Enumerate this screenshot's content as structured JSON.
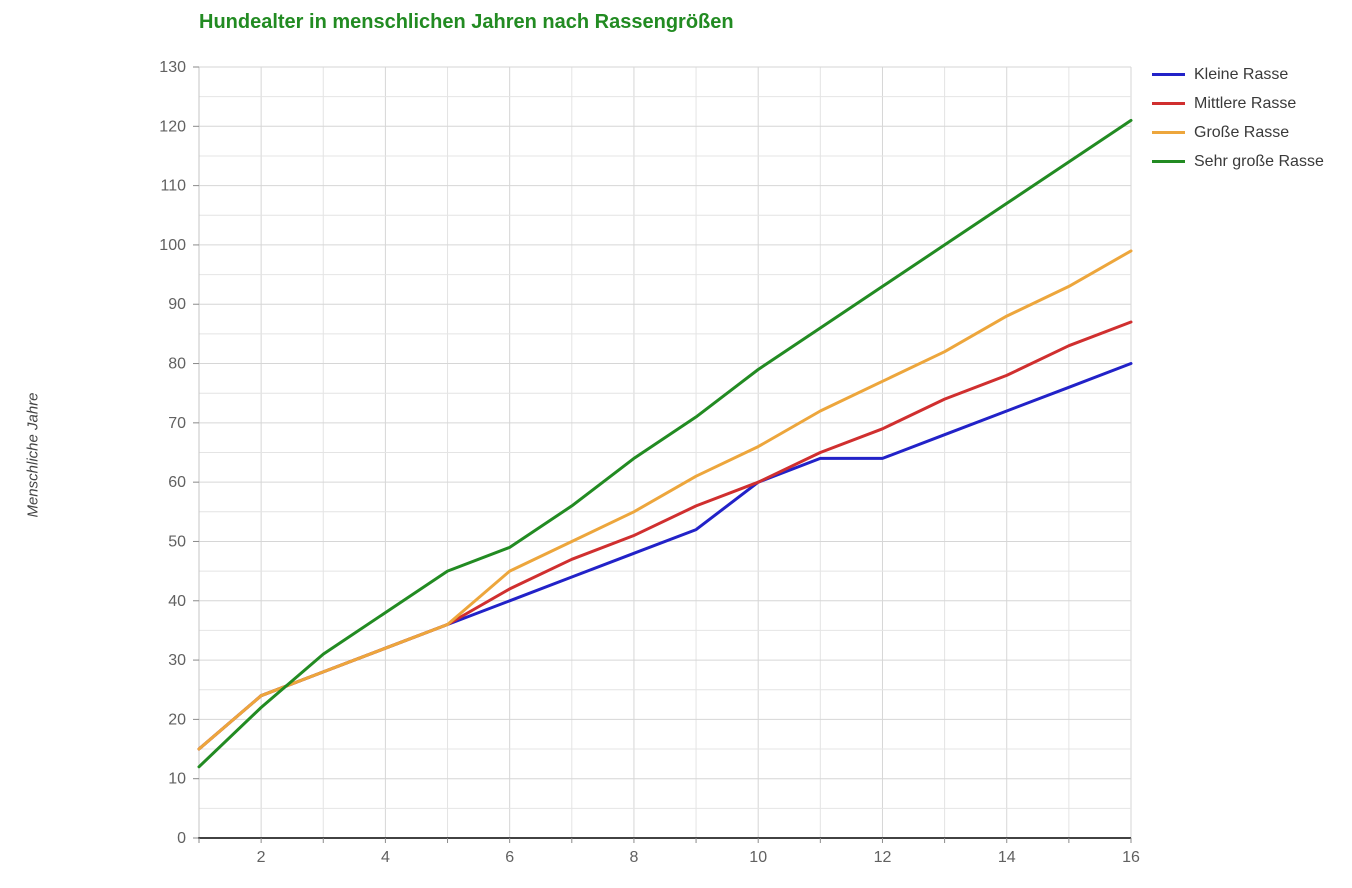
{
  "title": "Hundealter in menschlichen Jahren nach Rassengrößen",
  "colors": {
    "title_text": "#228B22",
    "axis_text": "#616161",
    "ylabel_text": "#444444",
    "legend_text": "#3a3a3a",
    "grid_minor": "#e4e4e4",
    "grid_major": "#d6d6d6",
    "left_spine": "#c4c4c4",
    "bottom_spine": "#424242",
    "tick_mark": "#8a8a8a"
  },
  "chart_data": {
    "type": "line",
    "title": "Hundealter in menschlichen Jahren nach Rassengrößen",
    "xlabel": "",
    "ylabel": "Menschliche Jahre",
    "x": [
      1,
      2,
      3,
      4,
      5,
      6,
      7,
      8,
      9,
      10,
      11,
      12,
      13,
      14,
      15,
      16
    ],
    "series": [
      {
        "name": "Kleine Rasse",
        "color": "#2222c8",
        "values": [
          15,
          24,
          28,
          32,
          36,
          40,
          44,
          48,
          52,
          60,
          64,
          64,
          68,
          72,
          76,
          80
        ]
      },
      {
        "name": "Mittlere Rasse",
        "color": "#d02f2f",
        "values": [
          15,
          24,
          28,
          32,
          36,
          42,
          47,
          51,
          56,
          60,
          65,
          69,
          74,
          78,
          83,
          87
        ]
      },
      {
        "name": "Große Rasse",
        "color": "#eda63c",
        "values": [
          15,
          24,
          28,
          32,
          36,
          45,
          50,
          55,
          61,
          66,
          72,
          77,
          82,
          88,
          93,
          99
        ]
      },
      {
        "name": "Sehr große Rasse",
        "color": "#228b22",
        "values": [
          12,
          22,
          31,
          38,
          45,
          49,
          56,
          64,
          71,
          79,
          86,
          93,
          100,
          107,
          114,
          121
        ]
      }
    ],
    "xlim": [
      1,
      16
    ],
    "ylim": [
      0,
      130
    ],
    "x_tick_labels": [
      "2",
      "4",
      "6",
      "8",
      "10",
      "12",
      "14",
      "16"
    ],
    "x_tick_values": [
      2,
      4,
      6,
      8,
      10,
      12,
      14,
      16
    ],
    "y_tick_labels": [
      "0",
      "10",
      "20",
      "30",
      "40",
      "50",
      "60",
      "70",
      "80",
      "90",
      "100",
      "110",
      "120",
      "130"
    ],
    "y_tick_values": [
      0,
      10,
      20,
      30,
      40,
      50,
      60,
      70,
      80,
      90,
      100,
      110,
      120,
      130
    ],
    "grid": true,
    "grid_x_step": 1,
    "grid_y_step": 5,
    "legend_position": "top-right"
  }
}
